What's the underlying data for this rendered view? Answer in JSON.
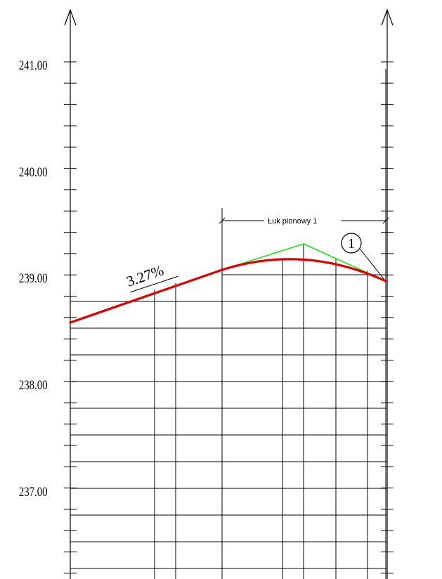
{
  "profile": {
    "elevation_labels": [
      "241.00",
      "240.00",
      "239.00",
      "238.00",
      "237.00"
    ],
    "grade_label": "3.27%",
    "curve_label": "Łuk pionowy 1",
    "callout_number": "1"
  },
  "colors": {
    "background": "#ffffff",
    "lines": "#000000",
    "profile_curve": "#e00000",
    "tangent_lines": "#22e022"
  }
}
